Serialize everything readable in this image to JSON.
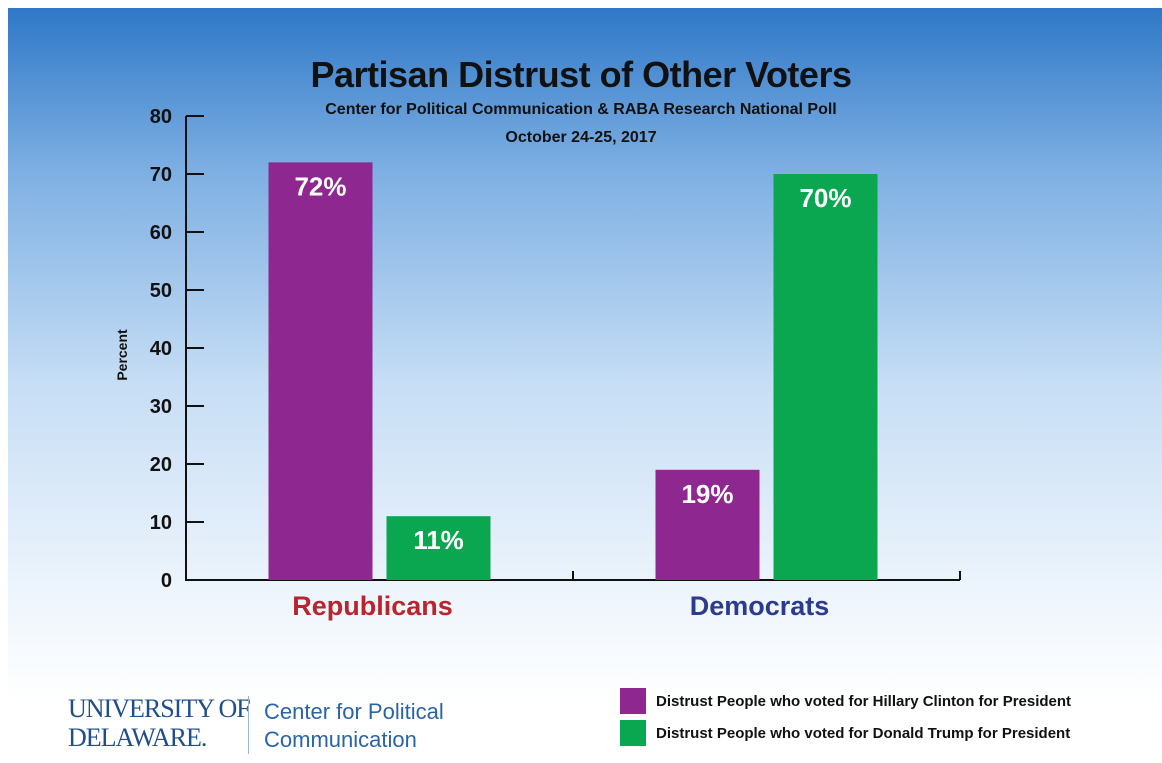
{
  "chart_data": {
    "type": "bar",
    "title": "Partisan Distrust of Other Voters",
    "subtitle": "Center for Political Communication & RABA Research National Poll",
    "date": "October 24-25, 2017",
    "ylabel": "Percent",
    "ylim": [
      0,
      80
    ],
    "yticks": [
      "0",
      "10",
      "20",
      "30",
      "40",
      "50",
      "60",
      "70",
      "80"
    ],
    "categories": [
      "Republicans",
      "Democrats"
    ],
    "category_colors": [
      "#b8252e",
      "#2b3c8f"
    ],
    "series": [
      {
        "name": "Distrust People who voted for Hillary Clinton for President",
        "color": "#8e278f",
        "values": [
          72,
          19
        ],
        "labels": [
          "72%",
          "19%"
        ]
      },
      {
        "name": "Distrust People who voted for Donald Trump for President",
        "color": "#0aa650",
        "values": [
          11,
          70
        ],
        "labels": [
          "11%",
          "70%"
        ]
      }
    ],
    "grid": false,
    "legend_position": "bottom-right"
  },
  "logo": {
    "university_line1": "UNIVERSITY OF",
    "university_line2": "DELAWARE.",
    "center_line1": "Center for Political",
    "center_line2": "Communication"
  }
}
